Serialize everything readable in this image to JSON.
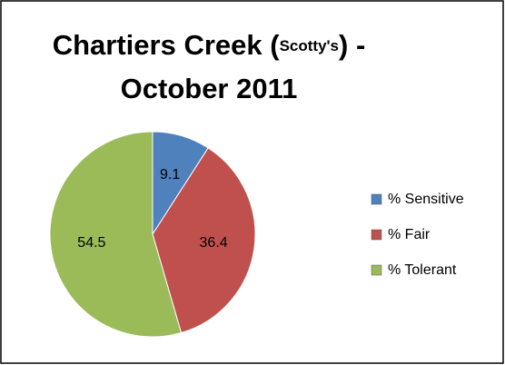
{
  "chart_data": {
    "type": "pie",
    "title": [
      "Chartiers Creek (",
      "Scotty's",
      ") -",
      "October 2011"
    ],
    "categories": [
      "% Sensitive",
      "% Fair",
      "% Tolerant"
    ],
    "values": [
      9.1,
      36.4,
      54.5
    ],
    "colors": [
      "#4f81bd",
      "#c0504d",
      "#9bbb59"
    ],
    "legend": "right"
  }
}
